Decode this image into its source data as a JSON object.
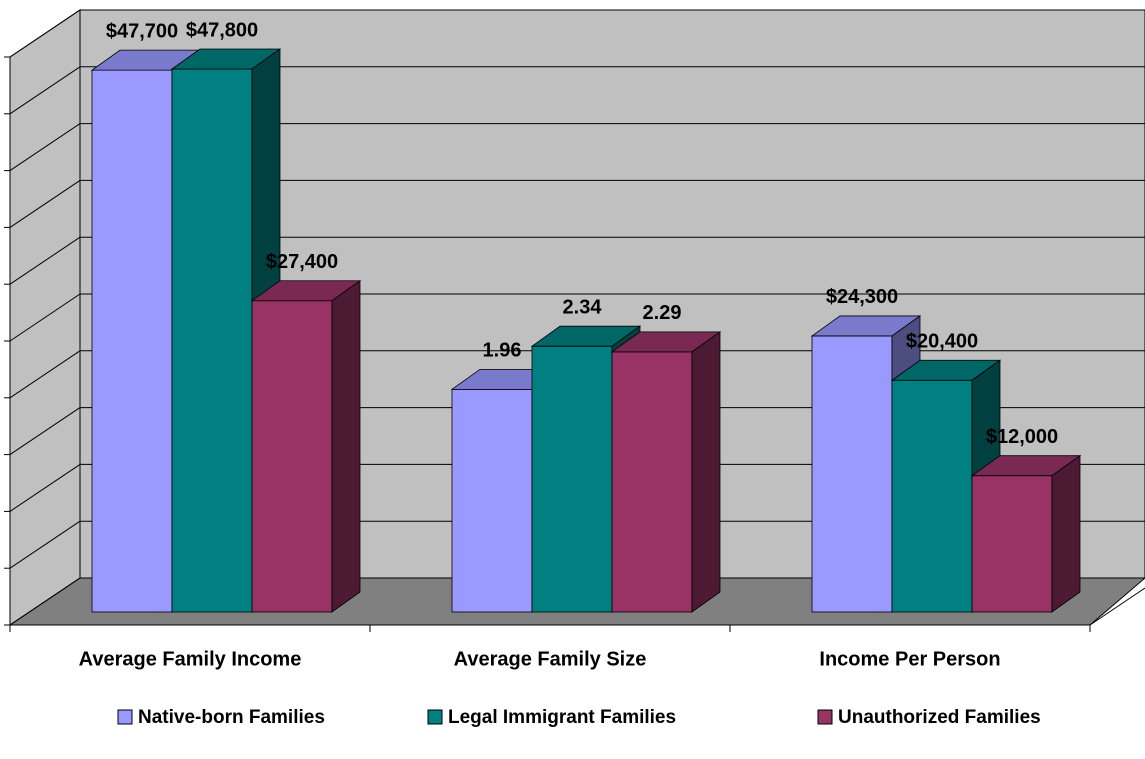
{
  "chart_data": {
    "type": "bar3d",
    "categories": [
      "Average Family Income",
      "Average Family Size",
      "Income Per Person"
    ],
    "category_axes": [
      "y",
      "y2",
      "y"
    ],
    "series": [
      {
        "name": "Native-born Families",
        "color": "#9999ff",
        "values": [
          47700,
          1.96,
          24300
        ],
        "value_labels": [
          "$47,700",
          "1.96",
          "$24,300"
        ]
      },
      {
        "name": "Legal Immigrant Families",
        "color": "#008080",
        "values": [
          47800,
          2.34,
          20400
        ],
        "value_labels": [
          "$47,800",
          "2.34",
          "$20,400"
        ]
      },
      {
        "name": "Unauthorized Families",
        "color": "#993366",
        "values": [
          27400,
          2.29,
          12000
        ],
        "value_labels": [
          "$27,400",
          "2.29",
          "$12,000"
        ]
      }
    ],
    "ylim": [
      0,
      50000
    ],
    "yticks": [
      0,
      5000,
      10000,
      15000,
      20000,
      25000,
      30000,
      35000,
      40000,
      45000,
      50000
    ],
    "y2lim": [
      0,
      5
    ],
    "grid": true,
    "legend": "bottom"
  }
}
